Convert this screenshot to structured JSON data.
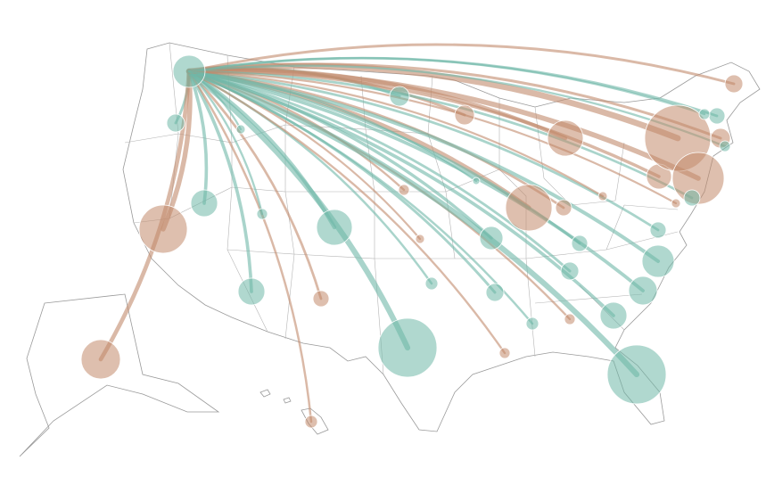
{
  "map": {
    "flows": [
      {
        "color": "#6fb8a8",
        "value": 324
      },
      {
        "color": "#6fb8a8",
        "value": 100
      },
      {
        "color": "#c28a6c",
        "value": 729
      },
      {
        "color": "#6fb8a8",
        "value": 225
      },
      {
        "color": "#c28a6c",
        "value": 484
      },
      {
        "color": "#6fb8a8",
        "value": 225
      },
      {
        "color": "#c28a6c",
        "value": 81
      },
      {
        "color": "#c28a6c",
        "value": 49
      },
      {
        "color": "#6fb8a8",
        "value": 36
      },
      {
        "color": "#6fb8a8",
        "value": 400
      },
      {
        "color": "#6fb8a8",
        "value": 1089
      },
      {
        "color": "#6fb8a8",
        "value": 121
      },
      {
        "color": "#c28a6c",
        "value": 121
      },
      {
        "color": "#c28a6c",
        "value": 36
      },
      {
        "color": "#c28a6c",
        "value": 25
      },
      {
        "color": "#6fb8a8",
        "value": 49
      },
      {
        "color": "#6fb8a8",
        "value": 169
      },
      {
        "color": "#6fb8a8",
        "value": 100
      },
      {
        "color": "#6fb8a8",
        "value": 49
      },
      {
        "color": "#c28a6c",
        "value": 36
      },
      {
        "color": "#c28a6c",
        "value": 676
      },
      {
        "color": "#c28a6c",
        "value": 81
      },
      {
        "color": "#c28a6c",
        "value": 400
      },
      {
        "color": "#6fb8a8",
        "value": 81
      },
      {
        "color": "#6fb8a8",
        "value": 100
      },
      {
        "color": "#c28a6c",
        "value": 36
      },
      {
        "color": "#6fb8a8",
        "value": 225
      },
      {
        "color": "#6fb8a8",
        "value": 1089
      },
      {
        "color": "#6fb8a8",
        "value": 256
      },
      {
        "color": "#6fb8a8",
        "value": 324
      },
      {
        "color": "#6fb8a8",
        "value": 81
      },
      {
        "color": "#c28a6c",
        "value": 196
      },
      {
        "color": "#c28a6c",
        "value": 1369
      },
      {
        "color": "#c28a6c",
        "value": 841
      },
      {
        "color": "#c28a6c",
        "value": 121
      },
      {
        "color": "#6fb8a8",
        "value": 81
      },
      {
        "color": "#6fb8a8",
        "value": 36
      },
      {
        "color": "#c28a6c",
        "value": 100
      },
      {
        "color": "#6fb8a8",
        "value": 36
      },
      {
        "color": "#6fb8a8",
        "value": 81
      },
      {
        "color": "#c28a6c",
        "value": 25
      },
      {
        "color": "#c28a6c",
        "value": 25
      },
      {
        "color": "#6fb8a8",
        "value": 16
      },
      {
        "color": "#6fb8a8",
        "value": 25
      }
    ]
  }
}
